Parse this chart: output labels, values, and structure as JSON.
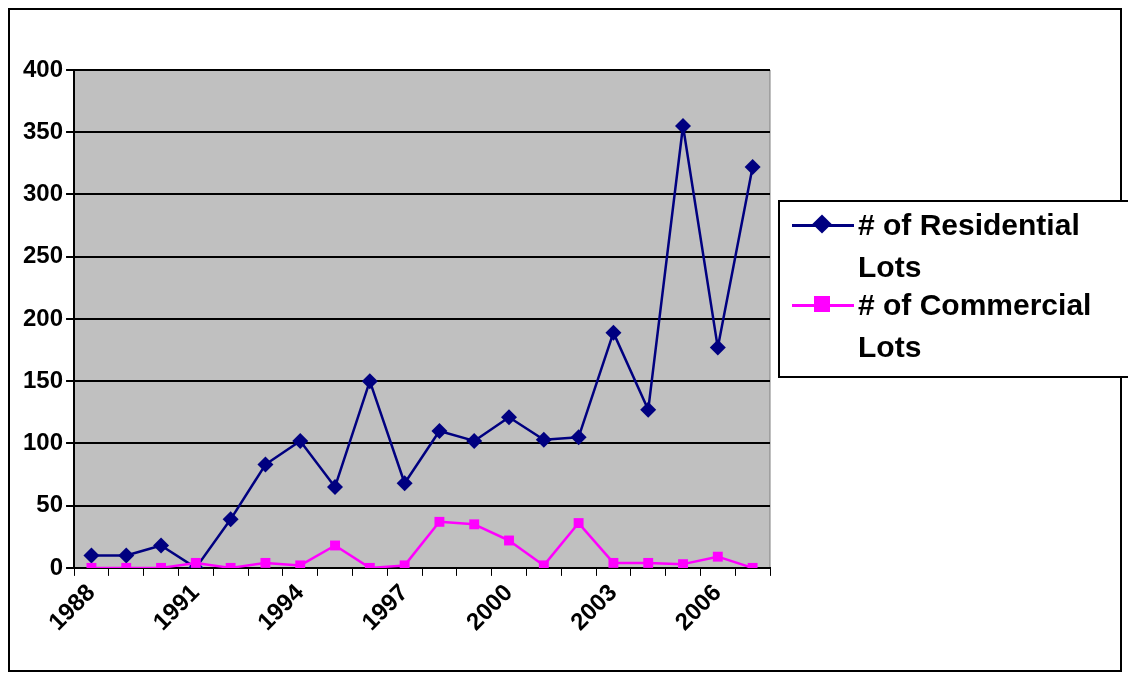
{
  "chart_data": {
    "type": "line",
    "categories": [
      "1988",
      null,
      null,
      "1991",
      null,
      null,
      "1994",
      null,
      null,
      "1997",
      null,
      null,
      "2000",
      null,
      null,
      "2003",
      null,
      null,
      "2006",
      null
    ],
    "series": [
      {
        "name": "# of Residential Lots",
        "color": "#000080",
        "marker": "diamond",
        "values": [
          10,
          10,
          18,
          0,
          39,
          83,
          102,
          65,
          150,
          68,
          110,
          102,
          121,
          103,
          105,
          189,
          127,
          355,
          177,
          322
        ]
      },
      {
        "name": "# of Commercial Lots",
        "color": "#ff00ff",
        "marker": "square",
        "values": [
          0,
          0,
          0,
          4,
          0,
          4,
          2,
          18,
          0,
          2,
          37,
          35,
          22,
          2,
          36,
          4,
          4,
          3,
          9,
          0
        ]
      }
    ],
    "ylim": [
      0,
      400
    ],
    "yticks": [
      0,
      50,
      100,
      150,
      200,
      250,
      300,
      350,
      400
    ],
    "grid": "y",
    "legend": "right",
    "line_style": "solid"
  }
}
